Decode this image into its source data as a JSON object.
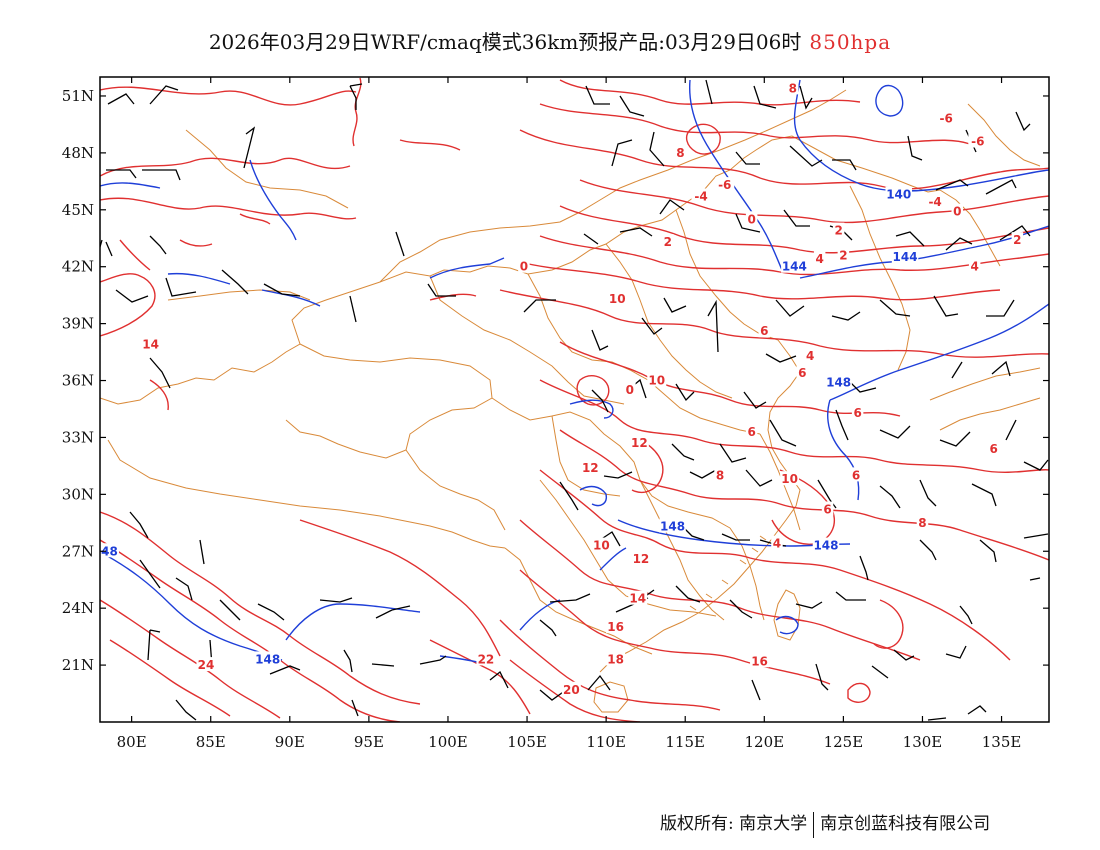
{
  "title": {
    "main": "2026年03月29日WRF/cmaq模式36km预报产品:03月29日06时",
    "level": "850hpa"
  },
  "colors": {
    "temperature": "#e03030",
    "height": "#1f3fd8",
    "border": "#d98a3a",
    "wind": "#000000",
    "frame": "#000000"
  },
  "map": {
    "lon_range": [
      78,
      138
    ],
    "lat_range": [
      18,
      52
    ],
    "lat_ticks": [
      {
        "lat": 51,
        "label": "51N"
      },
      {
        "lat": 48,
        "label": "48N"
      },
      {
        "lat": 45,
        "label": "45N"
      },
      {
        "lat": 42,
        "label": "42N"
      },
      {
        "lat": 39,
        "label": "39N"
      },
      {
        "lat": 36,
        "label": "36N"
      },
      {
        "lat": 33,
        "label": "33N"
      },
      {
        "lat": 30,
        "label": "30N"
      },
      {
        "lat": 27,
        "label": "27N"
      },
      {
        "lat": 24,
        "label": "24N"
      },
      {
        "lat": 21,
        "label": "21N"
      }
    ],
    "lon_ticks": [
      {
        "lon": 80,
        "label": "80E"
      },
      {
        "lon": 85,
        "label": "85E"
      },
      {
        "lon": 90,
        "label": "90E"
      },
      {
        "lon": 95,
        "label": "95E"
      },
      {
        "lon": 100,
        "label": "100E"
      },
      {
        "lon": 105,
        "label": "105E"
      },
      {
        "lon": 110,
        "label": "110E"
      },
      {
        "lon": 115,
        "label": "115E"
      },
      {
        "lon": 120,
        "label": "120E"
      },
      {
        "lon": 125,
        "label": "125E"
      },
      {
        "lon": 130,
        "label": "130E"
      },
      {
        "lon": 135,
        "label": "135E"
      }
    ],
    "temperature_labels": [
      {
        "lon": 121.8,
        "lat": 51.4,
        "text": "8"
      },
      {
        "lon": 131.5,
        "lat": 49.8,
        "text": "-6"
      },
      {
        "lon": 133.5,
        "lat": 48.6,
        "text": "-6"
      },
      {
        "lon": 114.7,
        "lat": 48.0,
        "text": "8"
      },
      {
        "lon": 117.5,
        "lat": 46.3,
        "text": "-6"
      },
      {
        "lon": 116.0,
        "lat": 45.7,
        "text": "-4"
      },
      {
        "lon": 130.8,
        "lat": 45.4,
        "text": "-4"
      },
      {
        "lon": 132.2,
        "lat": 44.9,
        "text": "0"
      },
      {
        "lon": 119.2,
        "lat": 44.5,
        "text": "0"
      },
      {
        "lon": 124.7,
        "lat": 43.9,
        "text": "2"
      },
      {
        "lon": 113.9,
        "lat": 43.3,
        "text": "2"
      },
      {
        "lon": 136.0,
        "lat": 43.4,
        "text": "2"
      },
      {
        "lon": 125.0,
        "lat": 42.6,
        "text": "2"
      },
      {
        "lon": 123.5,
        "lat": 42.4,
        "text": "4"
      },
      {
        "lon": 133.3,
        "lat": 42.0,
        "text": "4"
      },
      {
        "lon": 104.8,
        "lat": 42.0,
        "text": "0"
      },
      {
        "lon": 110.7,
        "lat": 40.3,
        "text": "10"
      },
      {
        "lon": 120.0,
        "lat": 38.6,
        "text": "6"
      },
      {
        "lon": 81.2,
        "lat": 37.9,
        "text": "14"
      },
      {
        "lon": 122.9,
        "lat": 37.3,
        "text": "4"
      },
      {
        "lon": 122.4,
        "lat": 36.4,
        "text": "6"
      },
      {
        "lon": 113.2,
        "lat": 36.0,
        "text": "10"
      },
      {
        "lon": 125.9,
        "lat": 34.3,
        "text": "6"
      },
      {
        "lon": 111.5,
        "lat": 35.5,
        "text": "0"
      },
      {
        "lon": 119.2,
        "lat": 33.3,
        "text": "6"
      },
      {
        "lon": 112.1,
        "lat": 32.7,
        "text": "12"
      },
      {
        "lon": 134.5,
        "lat": 32.4,
        "text": "6"
      },
      {
        "lon": 117.2,
        "lat": 31.0,
        "text": "8"
      },
      {
        "lon": 125.8,
        "lat": 31.0,
        "text": "6"
      },
      {
        "lon": 109.0,
        "lat": 31.4,
        "text": "12"
      },
      {
        "lon": 121.6,
        "lat": 30.8,
        "text": "10"
      },
      {
        "lon": 124.0,
        "lat": 29.2,
        "text": "6"
      },
      {
        "lon": 130.0,
        "lat": 28.5,
        "text": "8"
      },
      {
        "lon": 109.7,
        "lat": 27.3,
        "text": "10"
      },
      {
        "lon": 120.8,
        "lat": 27.4,
        "text": "4"
      },
      {
        "lon": 112.2,
        "lat": 26.6,
        "text": "12"
      },
      {
        "lon": 112.0,
        "lat": 24.5,
        "text": "14"
      },
      {
        "lon": 110.6,
        "lat": 23.0,
        "text": "16"
      },
      {
        "lon": 84.7,
        "lat": 21.0,
        "text": "24"
      },
      {
        "lon": 102.4,
        "lat": 21.3,
        "text": "22"
      },
      {
        "lon": 110.6,
        "lat": 21.3,
        "text": "18"
      },
      {
        "lon": 119.7,
        "lat": 21.2,
        "text": "16"
      },
      {
        "lon": 107.8,
        "lat": 19.7,
        "text": "20"
      }
    ],
    "height_labels": [
      {
        "lon": 128.5,
        "lat": 45.8,
        "text": "140"
      },
      {
        "lon": 121.9,
        "lat": 42.0,
        "text": "144"
      },
      {
        "lon": 128.9,
        "lat": 42.5,
        "text": "144"
      },
      {
        "lon": 124.7,
        "lat": 35.9,
        "text": "148"
      },
      {
        "lon": 114.2,
        "lat": 28.3,
        "text": "148"
      },
      {
        "lon": 123.9,
        "lat": 27.3,
        "text": "148"
      },
      {
        "lon": 78.6,
        "lat": 27.0,
        "text": "48"
      },
      {
        "lon": 88.6,
        "lat": 21.3,
        "text": "148"
      }
    ]
  },
  "footer": {
    "left": "版权所有: 南京大学",
    "right": "南京创蓝科技有限公司"
  }
}
